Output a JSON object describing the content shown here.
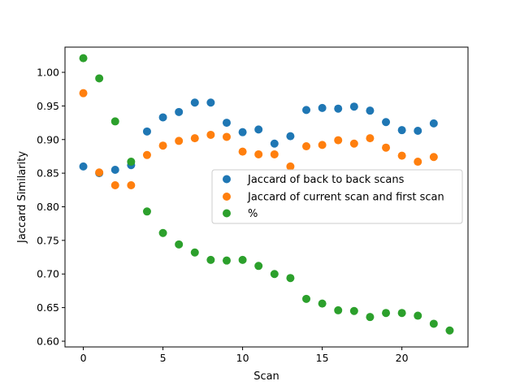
{
  "chart_data": {
    "type": "scatter",
    "title": "",
    "xlabel": "Scan",
    "ylabel": "Jaccard Similarity",
    "xlim": [
      -1.15,
      24.15
    ],
    "ylim": [
      0.5915,
      1.0375
    ],
    "xticks": [
      0,
      5,
      10,
      15,
      20
    ],
    "yticks": [
      0.6,
      0.65,
      0.7,
      0.75,
      0.8,
      0.85,
      0.9,
      0.95,
      1.0
    ],
    "xtick_labels": [
      "0",
      "5",
      "10",
      "15",
      "20"
    ],
    "ytick_labels": [
      "0.60",
      "0.65",
      "0.70",
      "0.75",
      "0.80",
      "0.85",
      "0.90",
      "0.95",
      "1.00"
    ],
    "grid": false,
    "legend_position": "center-right",
    "series": [
      {
        "name": "Jaccard of back to back scans",
        "color": "#1f77b4",
        "x": [
          0,
          1,
          2,
          3,
          4,
          5,
          6,
          7,
          8,
          9,
          10,
          11,
          12,
          13,
          14,
          15,
          16,
          17,
          18,
          19,
          20,
          21,
          22
        ],
        "y": [
          0.86,
          0.85,
          0.855,
          0.862,
          0.912,
          0.933,
          0.941,
          0.955,
          0.955,
          0.925,
          0.911,
          0.915,
          0.894,
          0.905,
          0.944,
          0.947,
          0.946,
          0.949,
          0.943,
          0.926,
          0.914,
          0.913,
          0.924
        ]
      },
      {
        "name": "Jaccard of current scan and first scan",
        "color": "#ff7f0e",
        "x": [
          0,
          1,
          2,
          3,
          4,
          5,
          6,
          7,
          8,
          9,
          10,
          11,
          12,
          13,
          14,
          15,
          16,
          17,
          18,
          19,
          20,
          21,
          22
        ],
        "y": [
          0.969,
          0.851,
          0.832,
          0.832,
          0.877,
          0.891,
          0.898,
          0.902,
          0.907,
          0.904,
          0.882,
          0.878,
          0.878,
          0.86,
          0.89,
          0.892,
          0.899,
          0.894,
          0.902,
          0.888,
          0.876,
          0.867,
          0.874
        ]
      },
      {
        "name": "%",
        "color": "#2ca02c",
        "x": [
          0,
          1,
          2,
          3,
          4,
          5,
          6,
          7,
          8,
          9,
          10,
          11,
          12,
          13,
          14,
          15,
          16,
          17,
          18,
          19,
          20,
          21,
          22,
          23
        ],
        "y": [
          1.021,
          0.991,
          0.927,
          0.867,
          0.793,
          0.761,
          0.744,
          0.732,
          0.721,
          0.72,
          0.721,
          0.712,
          0.7,
          0.694,
          0.663,
          0.656,
          0.646,
          0.645,
          0.636,
          0.642,
          0.642,
          0.638,
          0.626,
          0.616
        ]
      }
    ]
  }
}
